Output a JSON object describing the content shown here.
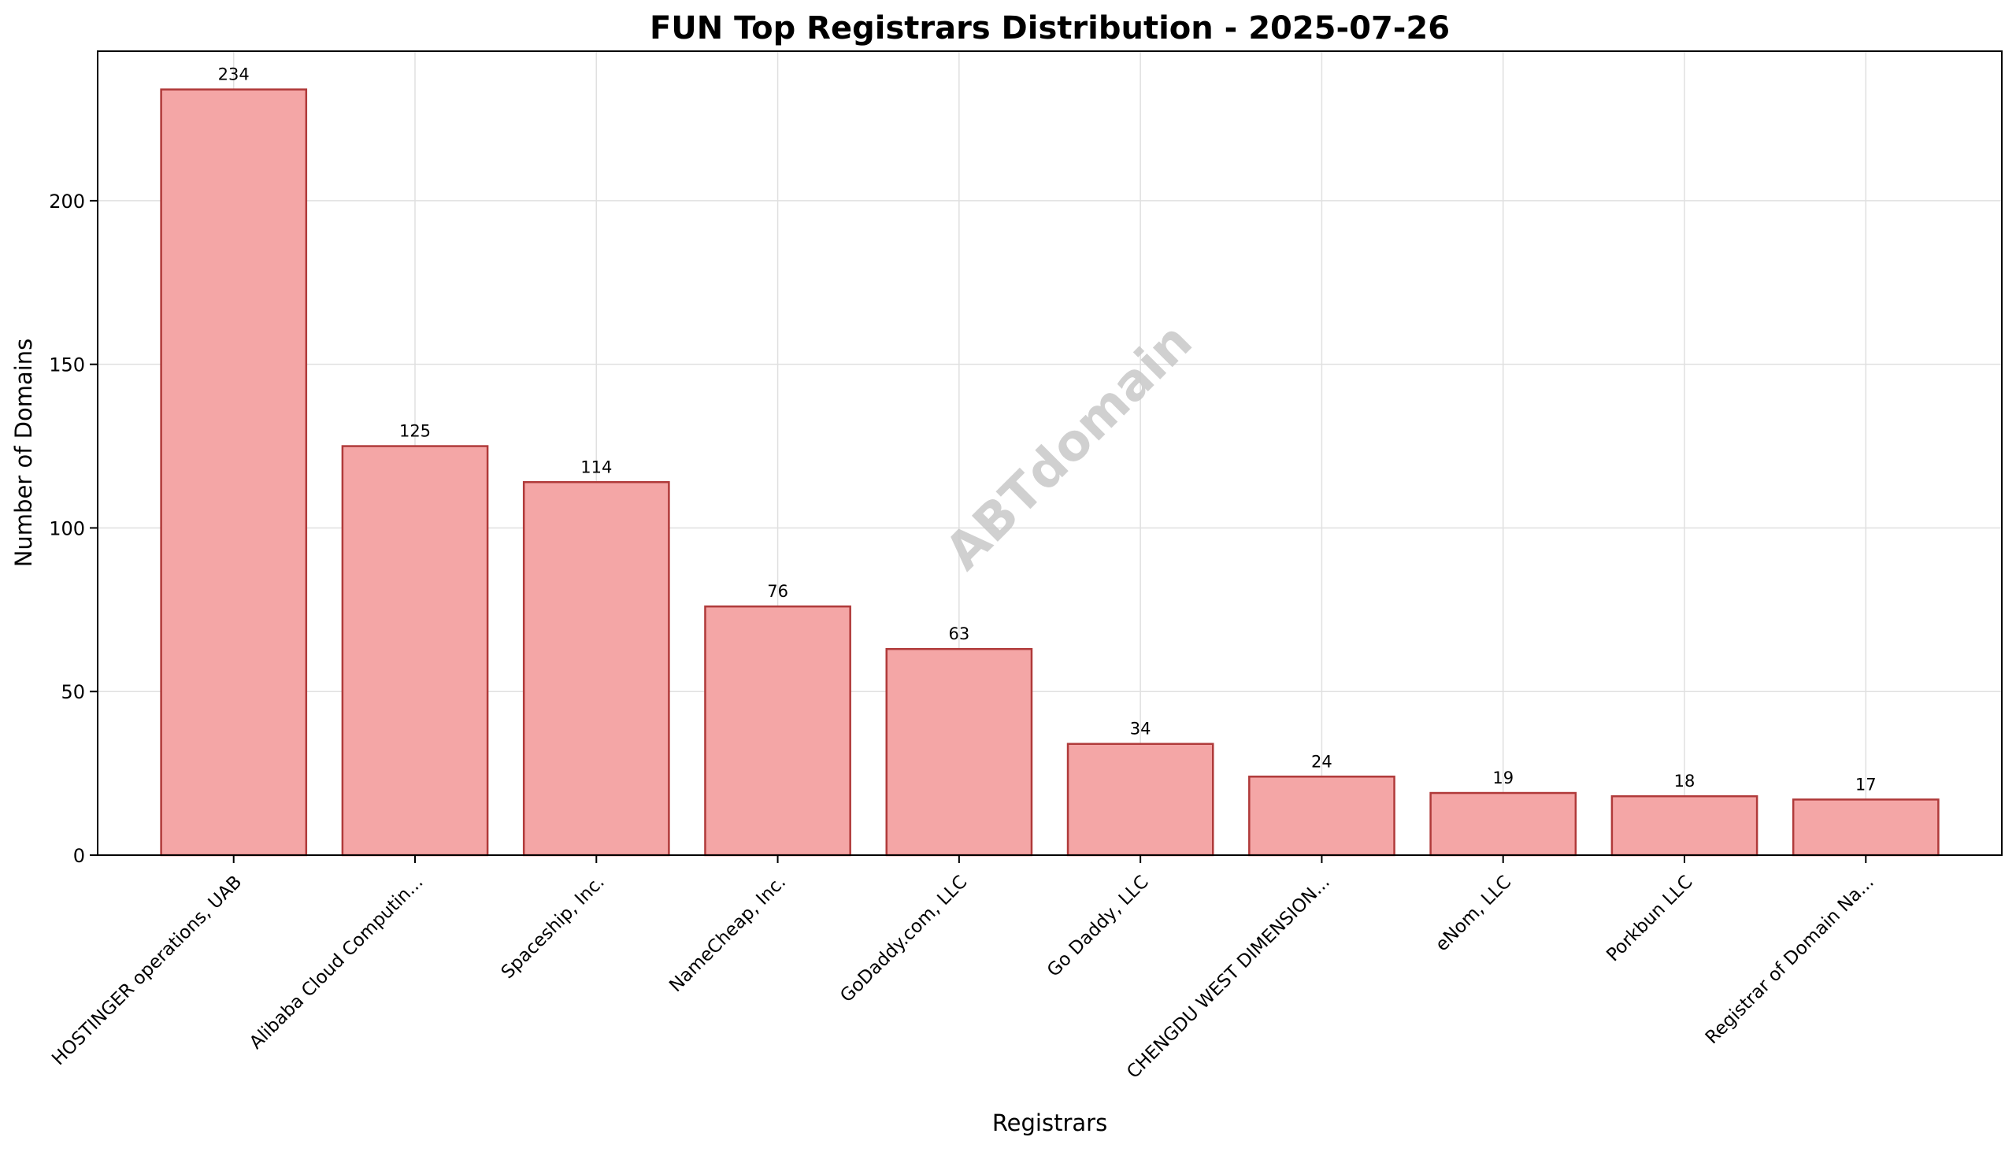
{
  "chart_data": {
    "type": "bar",
    "title": "FUN Top Registrars Distribution - 2025-07-26",
    "xlabel": "Registrars",
    "ylabel": "Number of Domains",
    "categories": [
      "HOSTINGER operations, UAB",
      "Alibaba Cloud Computin...",
      "Spaceship, Inc.",
      "NameCheap, Inc.",
      "GoDaddy.com, LLC",
      "Go Daddy, LLC",
      "CHENGDU WEST DIMENSION...",
      "eNom, LLC",
      "Porkbun LLC",
      "Registrar of Domain Na..."
    ],
    "values": [
      234,
      125,
      114,
      76,
      63,
      34,
      24,
      19,
      18,
      17
    ],
    "data_labels": [
      "234",
      "125",
      "114",
      "76",
      "63",
      "34",
      "24",
      "19",
      "18",
      "17"
    ],
    "yticks": [
      0,
      50,
      100,
      150,
      200
    ],
    "ytick_labels": [
      "0",
      "50",
      "100",
      "150",
      "200"
    ],
    "ylim": [
      0,
      245.7
    ],
    "grid": true,
    "watermark": "ABTdomain",
    "colors": {
      "bar_fill": "#f4a6a6",
      "bar_edge": "#b03a3a",
      "grid": "#e0e0e0",
      "watermark": "#c8c8c8",
      "text": "#000000"
    }
  }
}
